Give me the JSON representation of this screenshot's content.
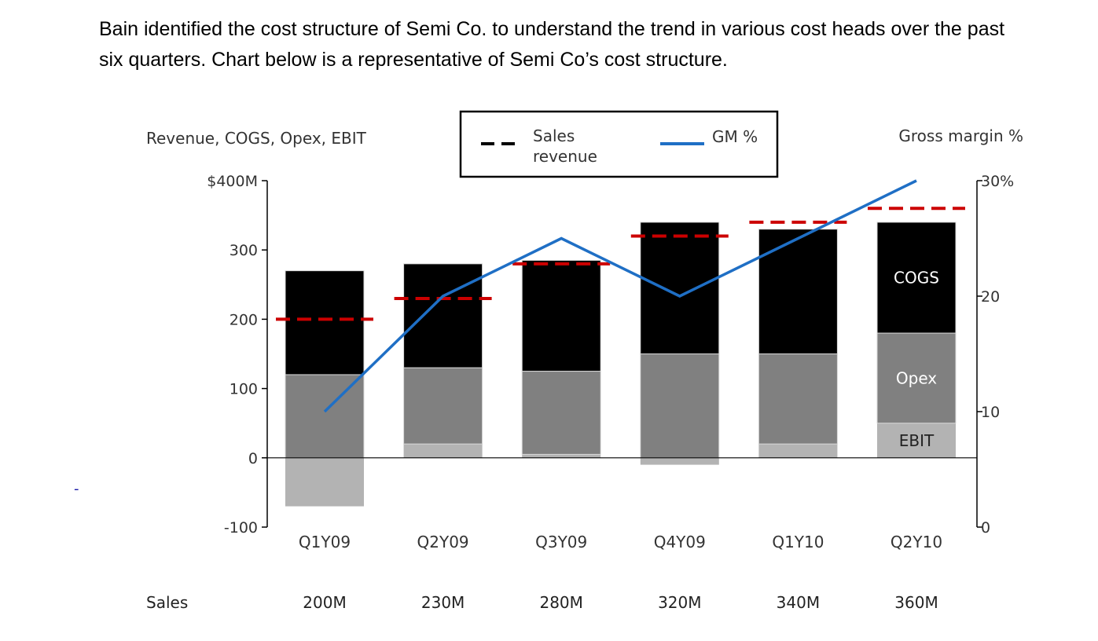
{
  "intro": {
    "line1": "Bain identified the cost structure of Semi Co. to understand the trend in various cost heads over the past",
    "line2": "six quarters. Chart below is a representative of Semi Co’s cost structure."
  },
  "stray_mark": "-",
  "chart_data": {
    "type": "bar",
    "stacked": true,
    "left_axis_title": "Revenue, COGS, Opex, EBIT",
    "right_axis_title": "Gross margin %",
    "legend": [
      {
        "name": "Sales revenue",
        "line1": "Sales",
        "line2": "revenue",
        "style": "dashed",
        "color": "#000000"
      },
      {
        "name": "GM %",
        "line1": "GM %",
        "style": "solid",
        "color": "#1f6fc5"
      }
    ],
    "categories": [
      "Q1Y09",
      "Q2Y09",
      "Q3Y09",
      "Q4Y09",
      "Q1Y10",
      "Q2Y10"
    ],
    "ylim": [
      -100,
      400
    ],
    "y_ticks": [
      {
        "value": 400,
        "label": "$400M"
      },
      {
        "value": 300,
        "label": "300"
      },
      {
        "value": 200,
        "label": "200"
      },
      {
        "value": 100,
        "label": "100"
      },
      {
        "value": 0,
        "label": "0"
      },
      {
        "value": -100,
        "label": "-100"
      }
    ],
    "y2lim": [
      0,
      30
    ],
    "y2_ticks": [
      {
        "value": 30,
        "label": "30%"
      },
      {
        "value": 20,
        "label": "20"
      },
      {
        "value": 10,
        "label": "10"
      },
      {
        "value": 0,
        "label": "0"
      }
    ],
    "series": [
      {
        "name": "EBIT",
        "color": "#b3b3b3",
        "values": [
          -70,
          20,
          5,
          -10,
          20,
          50
        ]
      },
      {
        "name": "Opex",
        "color": "#808080",
        "values": [
          120,
          110,
          120,
          150,
          130,
          130
        ]
      },
      {
        "name": "COGS",
        "color": "#000000",
        "values": [
          150,
          150,
          160,
          190,
          180,
          160
        ]
      }
    ],
    "segment_labels": {
      "cogs": "COGS",
      "opex": "Opex",
      "ebit": "EBIT"
    },
    "sales_revenue": {
      "name": "Sales revenue",
      "color": "#cc0000",
      "values": [
        200,
        230,
        280,
        320,
        340,
        360
      ]
    },
    "gm_percent": {
      "name": "GM %",
      "color": "#1f6fc5",
      "values": [
        10,
        20,
        25,
        20,
        25,
        30
      ]
    },
    "sales_row": {
      "label": "Sales",
      "values": [
        "200M",
        "230M",
        "280M",
        "320M",
        "340M",
        "360M"
      ]
    }
  }
}
